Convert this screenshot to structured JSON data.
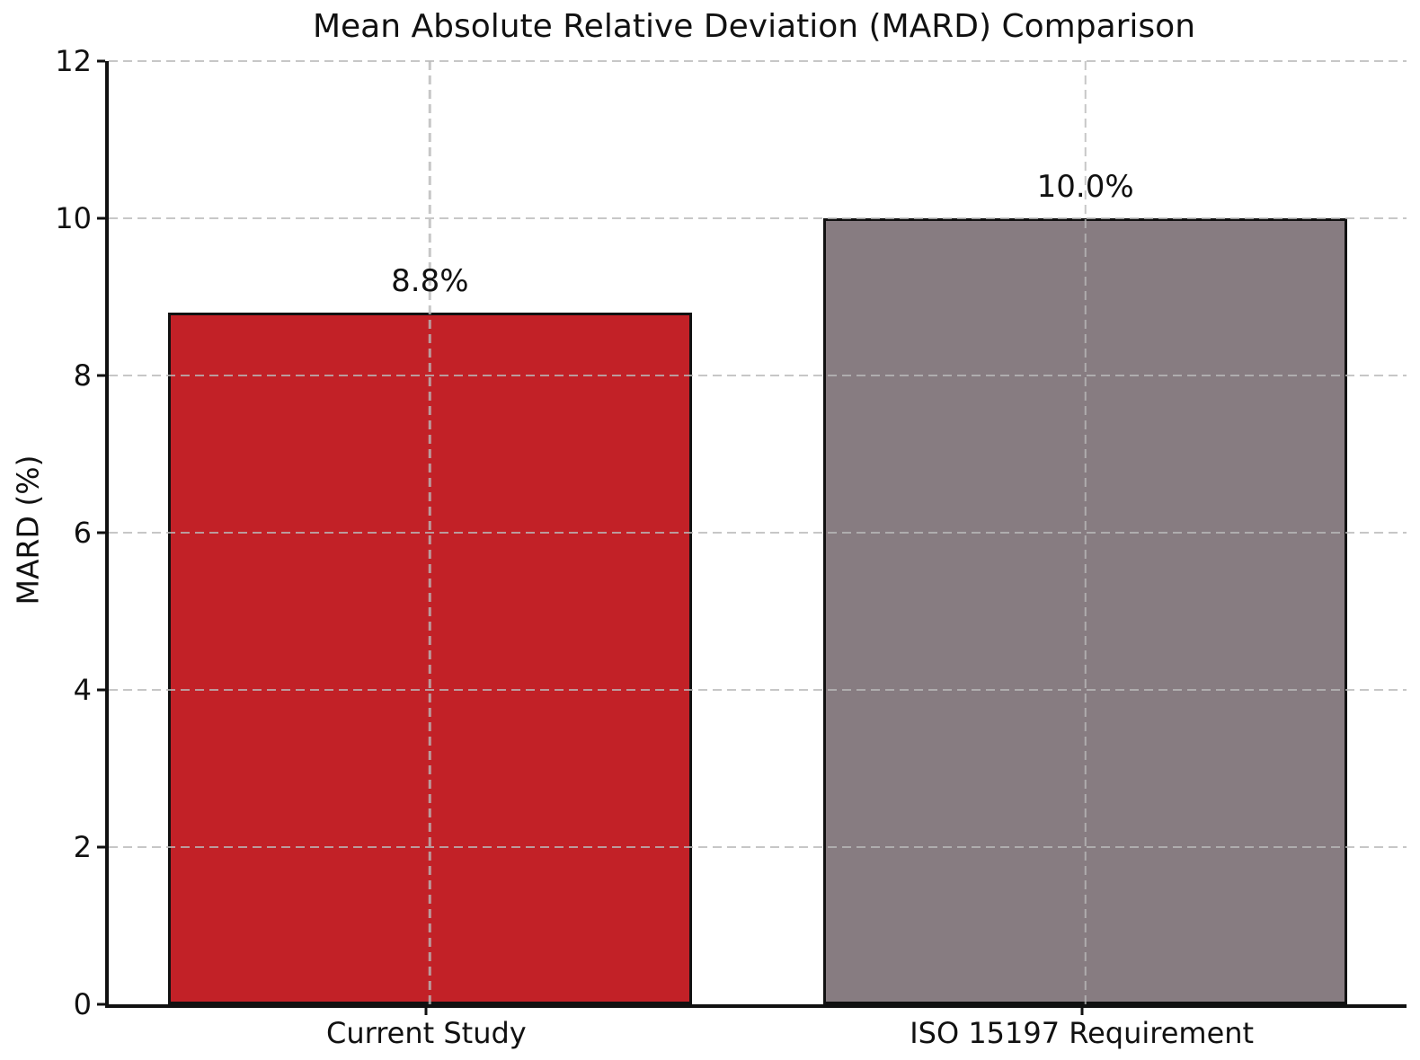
{
  "chart_data": {
    "type": "bar",
    "title": "Mean Absolute Relative Deviation (MARD) Comparison",
    "xlabel": "",
    "ylabel": "MARD (%)",
    "categories": [
      "Current Study",
      "ISO 15197 Requirement"
    ],
    "values": [
      8.8,
      10.0
    ],
    "bar_labels": [
      "8.8%",
      "10.0%"
    ],
    "bar_colors": [
      "#c22127",
      "#877c81"
    ],
    "bar_edge_color": "#111111",
    "ylim": [
      0,
      12
    ],
    "yticks": [
      0,
      2,
      4,
      6,
      8,
      10,
      12
    ],
    "ytick_labels": [
      "0",
      "2",
      "4",
      "6",
      "8",
      "10",
      "12"
    ],
    "grid": true,
    "grid_style": "dashed",
    "grid_drawn_above_bars": true,
    "grid_color": "#c9c9c9",
    "background_color": "#ffffff",
    "legend_position": "none"
  }
}
